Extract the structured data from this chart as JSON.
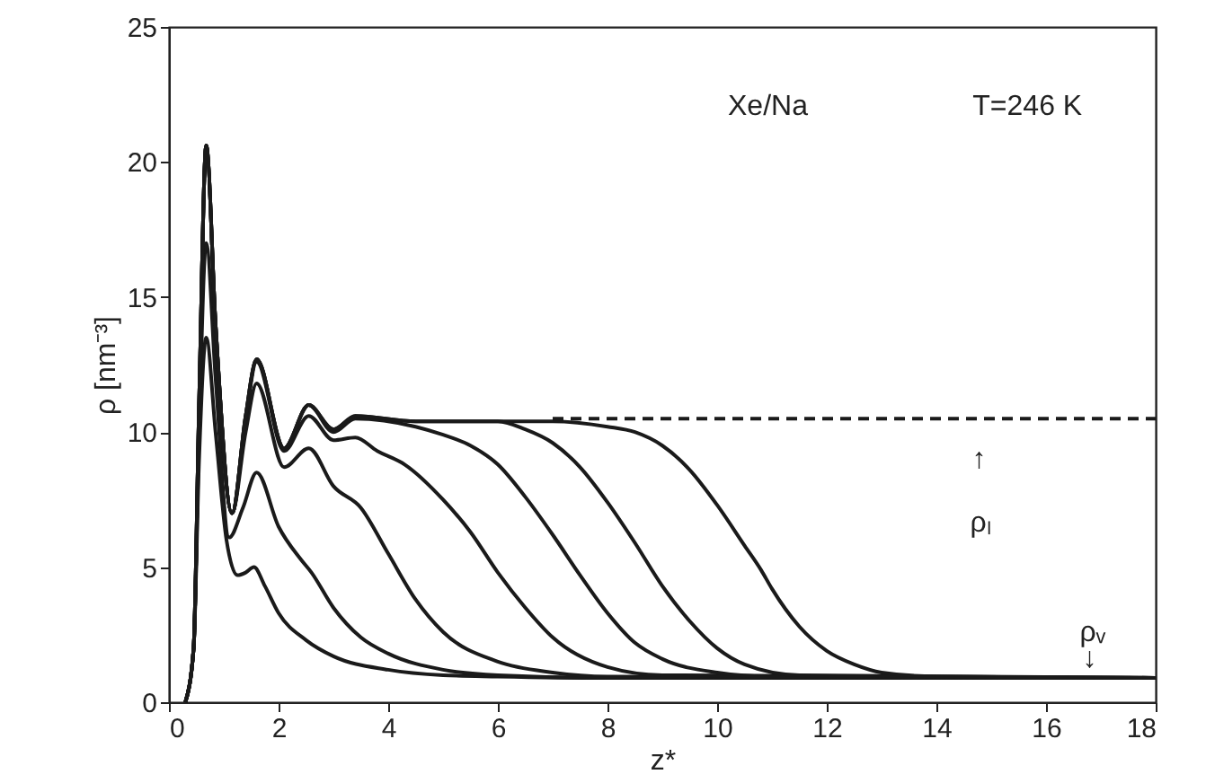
{
  "chart_data": {
    "type": "line",
    "xlabel": "z*",
    "ylabel": "ρ [nm⁻³]",
    "xlim": [
      0,
      18
    ],
    "ylim": [
      0,
      25
    ],
    "xticks": [
      0,
      2,
      4,
      6,
      8,
      10,
      12,
      14,
      16,
      18
    ],
    "yticks": [
      0,
      5,
      10,
      15,
      20,
      25
    ],
    "grid": false,
    "marker": "none",
    "line_style": "solid",
    "annotations": [
      "Xe/Na",
      "T=246 K",
      "↑",
      "ρₗ",
      "ρᵥ",
      "↓"
    ],
    "series": [
      {
        "color": "#1a1a1a",
        "x": [
          0.3,
          0.45,
          0.55,
          0.68,
          0.85,
          1.05,
          1.25,
          1.4,
          1.55,
          1.75,
          2.0,
          2.5,
          3,
          4,
          5,
          6,
          8,
          18
        ],
        "values": [
          0,
          2,
          9,
          13.5,
          10,
          6,
          4.7,
          4.8,
          5.0,
          4.3,
          3.3,
          2.3,
          1.7,
          1.2,
          1.0,
          0.95,
          0.9,
          0.9
        ]
      },
      {
        "color": "#1a1a1a",
        "x": [
          0.3,
          0.45,
          0.55,
          0.68,
          0.85,
          1.1,
          1.35,
          1.6,
          2.0,
          2.4,
          2.6,
          3,
          3.5,
          4,
          5,
          6,
          8,
          18
        ],
        "values": [
          0,
          2,
          10,
          17,
          12,
          6.1,
          7.2,
          8.5,
          6.5,
          5.3,
          4.8,
          3.5,
          2.4,
          1.8,
          1.2,
          1.0,
          0.9,
          0.9
        ]
      },
      {
        "color": "#1a1a1a",
        "x": [
          0.3,
          0.45,
          0.55,
          0.68,
          0.85,
          1.15,
          1.4,
          1.6,
          2.1,
          2.55,
          3.0,
          3.5,
          4.0,
          4.5,
          5,
          6,
          7,
          8,
          18
        ],
        "values": [
          0,
          2,
          11,
          20.6,
          14,
          7.0,
          10,
          11.8,
          8.7,
          9.4,
          8.0,
          7.2,
          5.5,
          3.8,
          2.6,
          1.5,
          1.1,
          0.95,
          0.9
        ]
      },
      {
        "color": "#1a1a1a",
        "x": [
          0.3,
          0.45,
          0.55,
          0.68,
          0.85,
          1.15,
          1.4,
          1.6,
          2.1,
          2.55,
          3.0,
          3.4,
          3.8,
          4.3,
          5,
          5.5,
          6,
          6.5,
          7,
          8,
          9,
          18
        ],
        "values": [
          0,
          2,
          11,
          20.6,
          14,
          7.0,
          10.5,
          12.6,
          9.3,
          10.6,
          9.7,
          9.8,
          9.3,
          8.8,
          7.5,
          6.3,
          4.8,
          3.5,
          2.4,
          1.3,
          1.0,
          0.9
        ]
      },
      {
        "color": "#1a1a1a",
        "x": [
          0.3,
          0.45,
          0.55,
          0.68,
          0.85,
          1.15,
          1.4,
          1.6,
          2.1,
          2.55,
          3.0,
          3.4,
          4.5,
          5,
          5.5,
          6,
          6.5,
          7,
          7.5,
          8,
          8.5,
          9,
          10,
          11,
          18
        ],
        "values": [
          0,
          2,
          11,
          20.6,
          14,
          7.0,
          10.6,
          12.7,
          9.4,
          11.0,
          10.0,
          10.5,
          10.2,
          9.9,
          9.5,
          8.8,
          7.6,
          6.2,
          4.7,
          3.3,
          2.2,
          1.6,
          1.1,
          0.95,
          0.9
        ]
      },
      {
        "color": "#1a1a1a",
        "x": [
          0.3,
          0.45,
          0.55,
          0.68,
          0.85,
          1.15,
          1.4,
          1.6,
          2.1,
          2.55,
          3.0,
          3.4,
          4.5,
          6,
          6.5,
          7,
          7.5,
          8,
          8.5,
          9,
          9.5,
          10,
          10.5,
          11.5,
          18
        ],
        "values": [
          0,
          2,
          11,
          20.6,
          14,
          7.0,
          10.6,
          12.7,
          9.4,
          11.0,
          10.1,
          10.6,
          10.4,
          10.4,
          10.1,
          9.6,
          8.7,
          7.4,
          5.9,
          4.3,
          3.0,
          2.0,
          1.4,
          1.0,
          0.9
        ]
      },
      {
        "color": "#1a1a1a",
        "x": [
          0.3,
          0.45,
          0.55,
          0.68,
          0.85,
          1.15,
          1.4,
          1.6,
          2.1,
          2.55,
          3.0,
          3.4,
          4.5,
          7,
          8,
          8.5,
          9,
          9.5,
          10,
          10.5,
          10.8,
          11,
          11.5,
          12,
          12.5,
          13,
          14,
          18
        ],
        "values": [
          0,
          2,
          11,
          20.6,
          14,
          7.0,
          10.6,
          12.7,
          9.4,
          11.0,
          10.1,
          10.6,
          10.4,
          10.4,
          10.2,
          10.0,
          9.5,
          8.6,
          7.3,
          5.8,
          4.9,
          4.2,
          2.8,
          1.9,
          1.4,
          1.1,
          0.95,
          0.9
        ]
      },
      {
        "color": "#1a1a1a",
        "line_style": "dashed",
        "x": [
          7,
          18
        ],
        "values": [
          10.5,
          10.5
        ]
      }
    ]
  }
}
